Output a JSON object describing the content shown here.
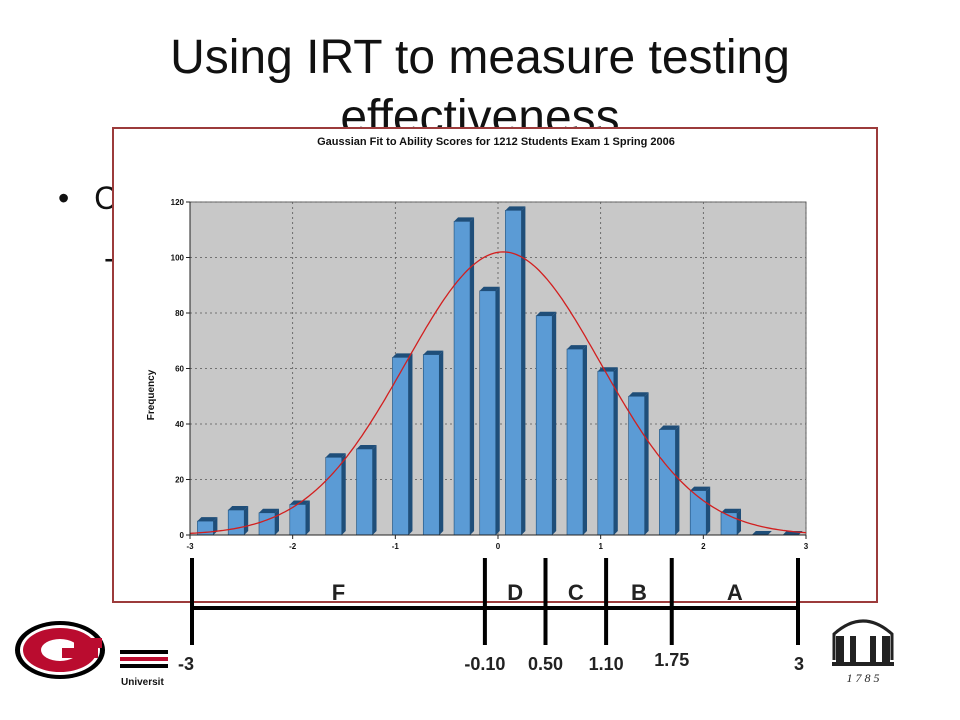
{
  "slide": {
    "title_line1": "Using IRT to measure testing",
    "title_line2": "effectiveness",
    "bullet_glyph": "•",
    "bullet_text_partial": "C",
    "sub_dash": "-"
  },
  "chart_data": {
    "type": "bar",
    "title": "Gaussian Fit to Ability Scores for 1212  Students Exam 1 Spring 2006",
    "xlabel": "",
    "ylabel": "Frequency",
    "xlim": [
      -3,
      3
    ],
    "ylim": [
      0,
      120
    ],
    "x_ticks": [
      "-3",
      "-2",
      "-1",
      "0",
      "1",
      "2",
      "3"
    ],
    "y_ticks": [
      "0",
      "20",
      "40",
      "60",
      "80",
      "100",
      "120"
    ],
    "grid": true,
    "bar_centers": [
      -2.85,
      -2.55,
      -2.25,
      -1.95,
      -1.6,
      -1.3,
      -0.95,
      -0.65,
      -0.35,
      -0.1,
      0.15,
      0.45,
      0.75,
      1.05,
      1.35,
      1.65,
      1.95,
      2.25,
      2.55,
      2.85
    ],
    "values": [
      5,
      9,
      8,
      11,
      28,
      31,
      64,
      65,
      113,
      88,
      117,
      79,
      67,
      59,
      50,
      38,
      16,
      8,
      0,
      0
    ],
    "fit_curve": {
      "type": "gaussian",
      "mean": 0.05,
      "sd": 0.95,
      "peak": 102
    },
    "colors": {
      "bar": "#5b9bd5",
      "bar_dark": "#1f4e79",
      "curve": "#d21f1f",
      "plot_bg": "#c8c8c8"
    }
  },
  "grade_scale": {
    "grades": [
      {
        "letter": "F",
        "value": -3,
        "label": "-3"
      },
      {
        "letter": "D",
        "value": -0.1,
        "label": "-0.10"
      },
      {
        "letter": "C",
        "value": 0.5,
        "label": "0.50"
      },
      {
        "letter": "B",
        "value": 1.1,
        "label": "1.10"
      },
      {
        "letter": "A",
        "value": 1.75,
        "label": "1.75"
      }
    ],
    "end_label": "3",
    "end_value": 3
  },
  "footer": {
    "university_text": "Universit",
    "arch_year": "1 7 8 5",
    "colors": {
      "red": "#ba0c2f",
      "black": "#000000"
    }
  }
}
